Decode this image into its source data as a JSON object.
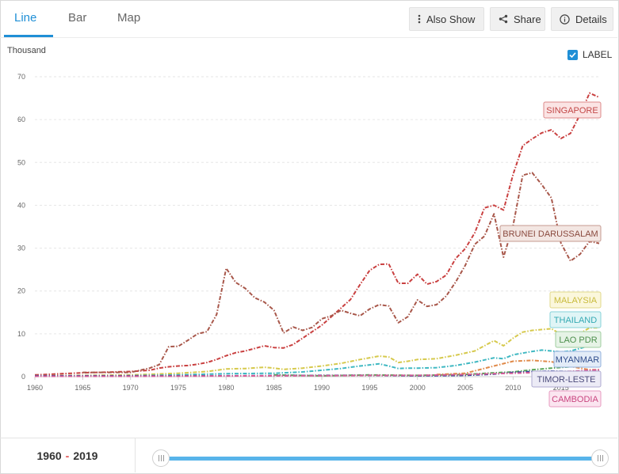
{
  "tabs": [
    {
      "label": "Line",
      "active": true
    },
    {
      "label": "Bar",
      "active": false
    },
    {
      "label": "Map",
      "active": false
    }
  ],
  "toolbar": {
    "also_show": "Also Show",
    "share": "Share",
    "details": "Details"
  },
  "label_toggle": {
    "label": "LABEL",
    "checked": true
  },
  "units_label": "Thousand",
  "range": {
    "start": "1960",
    "end": "2019"
  },
  "chart_data": {
    "type": "line",
    "ylabel": "Thousand",
    "ylim": [
      0,
      70
    ],
    "yticks": [
      0,
      10,
      20,
      30,
      40,
      50,
      60,
      70
    ],
    "xlim": [
      1960,
      2019
    ],
    "xticks": [
      1960,
      1965,
      1970,
      1975,
      1980,
      1985,
      1990,
      1995,
      2000,
      2005,
      2010,
      2015
    ],
    "grid": true,
    "series": [
      {
        "name": "SINGAPORE",
        "color": "#c94040",
        "points": [
          [
            1960,
            0.4
          ],
          [
            1965,
            0.9
          ],
          [
            1970,
            1.2
          ],
          [
            1972,
            1.5
          ],
          [
            1973,
            2.0
          ],
          [
            1974,
            2.3
          ],
          [
            1975,
            2.5
          ],
          [
            1976,
            2.6
          ],
          [
            1977,
            2.9
          ],
          [
            1978,
            3.3
          ],
          [
            1979,
            4.0
          ],
          [
            1980,
            4.9
          ],
          [
            1981,
            5.6
          ],
          [
            1982,
            6.0
          ],
          [
            1983,
            6.6
          ],
          [
            1984,
            7.2
          ],
          [
            1985,
            6.8
          ],
          [
            1986,
            6.7
          ],
          [
            1987,
            7.5
          ],
          [
            1988,
            9.0
          ],
          [
            1989,
            10.5
          ],
          [
            1990,
            12.0
          ],
          [
            1991,
            14.0
          ],
          [
            1992,
            16.0
          ],
          [
            1993,
            18.0
          ],
          [
            1994,
            21.5
          ],
          [
            1995,
            24.8
          ],
          [
            1996,
            26.2
          ],
          [
            1997,
            26.3
          ],
          [
            1998,
            21.8
          ],
          [
            1999,
            21.8
          ],
          [
            2000,
            23.9
          ],
          [
            2001,
            21.6
          ],
          [
            2002,
            22.2
          ],
          [
            2003,
            23.7
          ],
          [
            2004,
            27.6
          ],
          [
            2005,
            29.9
          ],
          [
            2006,
            33.6
          ],
          [
            2007,
            39.4
          ],
          [
            2008,
            40.0
          ],
          [
            2009,
            38.9
          ],
          [
            2010,
            47.2
          ],
          [
            2011,
            53.9
          ],
          [
            2012,
            55.5
          ],
          [
            2013,
            56.9
          ],
          [
            2014,
            57.6
          ],
          [
            2015,
            55.6
          ],
          [
            2016,
            56.8
          ],
          [
            2017,
            61.2
          ],
          [
            2018,
            66.2
          ],
          [
            2019,
            65.2
          ]
        ]
      },
      {
        "name": "BRUNEI DARUSSALAM",
        "color": "#a8574a",
        "points": [
          [
            1965,
            1.0
          ],
          [
            1970,
            1.0
          ],
          [
            1972,
            2.0
          ],
          [
            1973,
            2.8
          ],
          [
            1974,
            7.0
          ],
          [
            1975,
            7.1
          ],
          [
            1976,
            8.5
          ],
          [
            1977,
            10.0
          ],
          [
            1978,
            10.5
          ],
          [
            1979,
            14.5
          ],
          [
            1980,
            25.3
          ],
          [
            1981,
            22.0
          ],
          [
            1982,
            20.6
          ],
          [
            1983,
            18.4
          ],
          [
            1984,
            17.4
          ],
          [
            1985,
            15.5
          ],
          [
            1986,
            10.2
          ],
          [
            1987,
            11.6
          ],
          [
            1988,
            10.8
          ],
          [
            1989,
            11.5
          ],
          [
            1990,
            13.5
          ],
          [
            1991,
            14.2
          ],
          [
            1992,
            15.5
          ],
          [
            1993,
            14.8
          ],
          [
            1994,
            14.2
          ],
          [
            1995,
            15.8
          ],
          [
            1996,
            16.8
          ],
          [
            1997,
            16.5
          ],
          [
            1998,
            12.6
          ],
          [
            1999,
            14.0
          ],
          [
            2000,
            17.9
          ],
          [
            2001,
            16.4
          ],
          [
            2002,
            16.8
          ],
          [
            2003,
            18.8
          ],
          [
            2004,
            22.1
          ],
          [
            2005,
            26.0
          ],
          [
            2006,
            30.9
          ],
          [
            2007,
            32.8
          ],
          [
            2008,
            38.0
          ],
          [
            2009,
            27.9
          ],
          [
            2010,
            35.3
          ],
          [
            2011,
            47.0
          ],
          [
            2012,
            47.6
          ],
          [
            2013,
            44.8
          ],
          [
            2014,
            41.7
          ],
          [
            2015,
            31.2
          ],
          [
            2016,
            27.0
          ],
          [
            2017,
            28.6
          ],
          [
            2018,
            31.6
          ],
          [
            2019,
            31.1
          ]
        ]
      },
      {
        "name": "MALAYSIA",
        "color": "#d6c94c",
        "points": [
          [
            1960,
            0.2
          ],
          [
            1965,
            0.3
          ],
          [
            1970,
            0.4
          ],
          [
            1975,
            0.8
          ],
          [
            1978,
            1.2
          ],
          [
            1980,
            1.8
          ],
          [
            1982,
            1.9
          ],
          [
            1984,
            2.2
          ],
          [
            1985,
            2.0
          ],
          [
            1986,
            1.7
          ],
          [
            1988,
            2.0
          ],
          [
            1990,
            2.5
          ],
          [
            1992,
            3.1
          ],
          [
            1994,
            4.0
          ],
          [
            1996,
            4.8
          ],
          [
            1997,
            4.6
          ],
          [
            1998,
            3.3
          ],
          [
            1999,
            3.6
          ],
          [
            2000,
            4.0
          ],
          [
            2002,
            4.2
          ],
          [
            2004,
            5.0
          ],
          [
            2006,
            6.0
          ],
          [
            2008,
            8.4
          ],
          [
            2009,
            7.2
          ],
          [
            2010,
            9.0
          ],
          [
            2011,
            10.4
          ],
          [
            2012,
            10.8
          ],
          [
            2014,
            11.2
          ],
          [
            2015,
            9.9
          ],
          [
            2016,
            9.8
          ],
          [
            2017,
            10.1
          ],
          [
            2018,
            11.4
          ],
          [
            2019,
            11.4
          ]
        ]
      },
      {
        "name": "THAILAND",
        "color": "#3fb8c2",
        "points": [
          [
            1960,
            0.1
          ],
          [
            1970,
            0.2
          ],
          [
            1975,
            0.4
          ],
          [
            1980,
            0.7
          ],
          [
            1985,
            0.8
          ],
          [
            1988,
            1.1
          ],
          [
            1990,
            1.5
          ],
          [
            1992,
            1.9
          ],
          [
            1994,
            2.5
          ],
          [
            1996,
            3.0
          ],
          [
            1997,
            2.5
          ],
          [
            1998,
            1.9
          ],
          [
            1999,
            2.0
          ],
          [
            2000,
            2.0
          ],
          [
            2002,
            2.1
          ],
          [
            2004,
            2.6
          ],
          [
            2006,
            3.4
          ],
          [
            2008,
            4.4
          ],
          [
            2009,
            4.2
          ],
          [
            2010,
            5.1
          ],
          [
            2012,
            5.9
          ],
          [
            2013,
            6.2
          ],
          [
            2015,
            5.8
          ],
          [
            2016,
            6.0
          ],
          [
            2017,
            6.6
          ],
          [
            2018,
            7.3
          ],
          [
            2019,
            7.8
          ]
        ]
      },
      {
        "name": "LAO PDR",
        "color": "#5aa55a",
        "points": [
          [
            1985,
            0.4
          ],
          [
            1990,
            0.2
          ],
          [
            1995,
            0.4
          ],
          [
            2000,
            0.3
          ],
          [
            2005,
            0.5
          ],
          [
            2008,
            0.9
          ],
          [
            2010,
            1.1
          ],
          [
            2012,
            1.6
          ],
          [
            2014,
            2.0
          ],
          [
            2016,
            2.3
          ],
          [
            2018,
            2.5
          ],
          [
            2019,
            2.5
          ]
        ]
      },
      {
        "name": "MYANMAR",
        "color": "#31479a",
        "points": [
          [
            1960,
            0.2
          ],
          [
            1970,
            0.2
          ],
          [
            1980,
            0.2
          ],
          [
            1990,
            0.3
          ],
          [
            1995,
            0.3
          ],
          [
            2000,
            0.2
          ],
          [
            2005,
            0.3
          ],
          [
            2008,
            0.6
          ],
          [
            2010,
            1.0
          ],
          [
            2012,
            1.2
          ],
          [
            2014,
            1.3
          ],
          [
            2016,
            1.2
          ],
          [
            2018,
            1.3
          ],
          [
            2019,
            1.4
          ]
        ]
      },
      {
        "name": "TIMOR-LESTE",
        "color": "#e08a4a",
        "points": [
          [
            2002,
            0.5
          ],
          [
            2005,
            0.8
          ],
          [
            2008,
            2.5
          ],
          [
            2010,
            3.6
          ],
          [
            2012,
            3.8
          ],
          [
            2014,
            3.5
          ],
          [
            2015,
            3.0
          ],
          [
            2016,
            2.4
          ],
          [
            2017,
            2.0
          ],
          [
            2018,
            1.6
          ],
          [
            2019,
            1.6
          ]
        ]
      },
      {
        "name": "CAMBODIA",
        "color": "#d45b96",
        "points": [
          [
            1960,
            0.1
          ],
          [
            1970,
            0.1
          ],
          [
            1993,
            0.25
          ],
          [
            1995,
            0.3
          ],
          [
            2000,
            0.3
          ],
          [
            2005,
            0.5
          ],
          [
            2008,
            0.7
          ],
          [
            2010,
            0.8
          ],
          [
            2012,
            0.95
          ],
          [
            2014,
            1.1
          ],
          [
            2016,
            1.25
          ],
          [
            2018,
            1.5
          ],
          [
            2019,
            1.6
          ]
        ]
      }
    ],
    "labels": [
      {
        "text": "SINGAPORE",
        "border": "#dc8a8a",
        "bg": "#fbe4e4",
        "color": "#c24848"
      },
      {
        "text": "BRUNEI DARUSSALAM",
        "border": "#c49a90",
        "bg": "#f3e6e2",
        "color": "#8a4a3e"
      },
      {
        "text": "MALAYSIA",
        "border": "#e2d88a",
        "bg": "#fbf7dc",
        "color": "#c9bb3c"
      },
      {
        "text": "THAILAND",
        "border": "#86d2d8",
        "bg": "#e0f5f6",
        "color": "#35a9b3"
      },
      {
        "text": "LAO PDR",
        "border": "#9fcd9f",
        "bg": "#e6f3e6",
        "color": "#4d8f4d"
      },
      {
        "text": "MYANMAR",
        "border": "#92b0dc",
        "bg": "#e3ecf8",
        "color": "#2f4c8a"
      },
      {
        "text": "TIMOR-LESTE",
        "border": "#aeaad0",
        "bg": "#ecebf6",
        "color": "#4a4a7a"
      },
      {
        "text": "CAMBODIA",
        "border": "#e79ac0",
        "bg": "#fbe5f0",
        "color": "#c9457f"
      }
    ]
  }
}
